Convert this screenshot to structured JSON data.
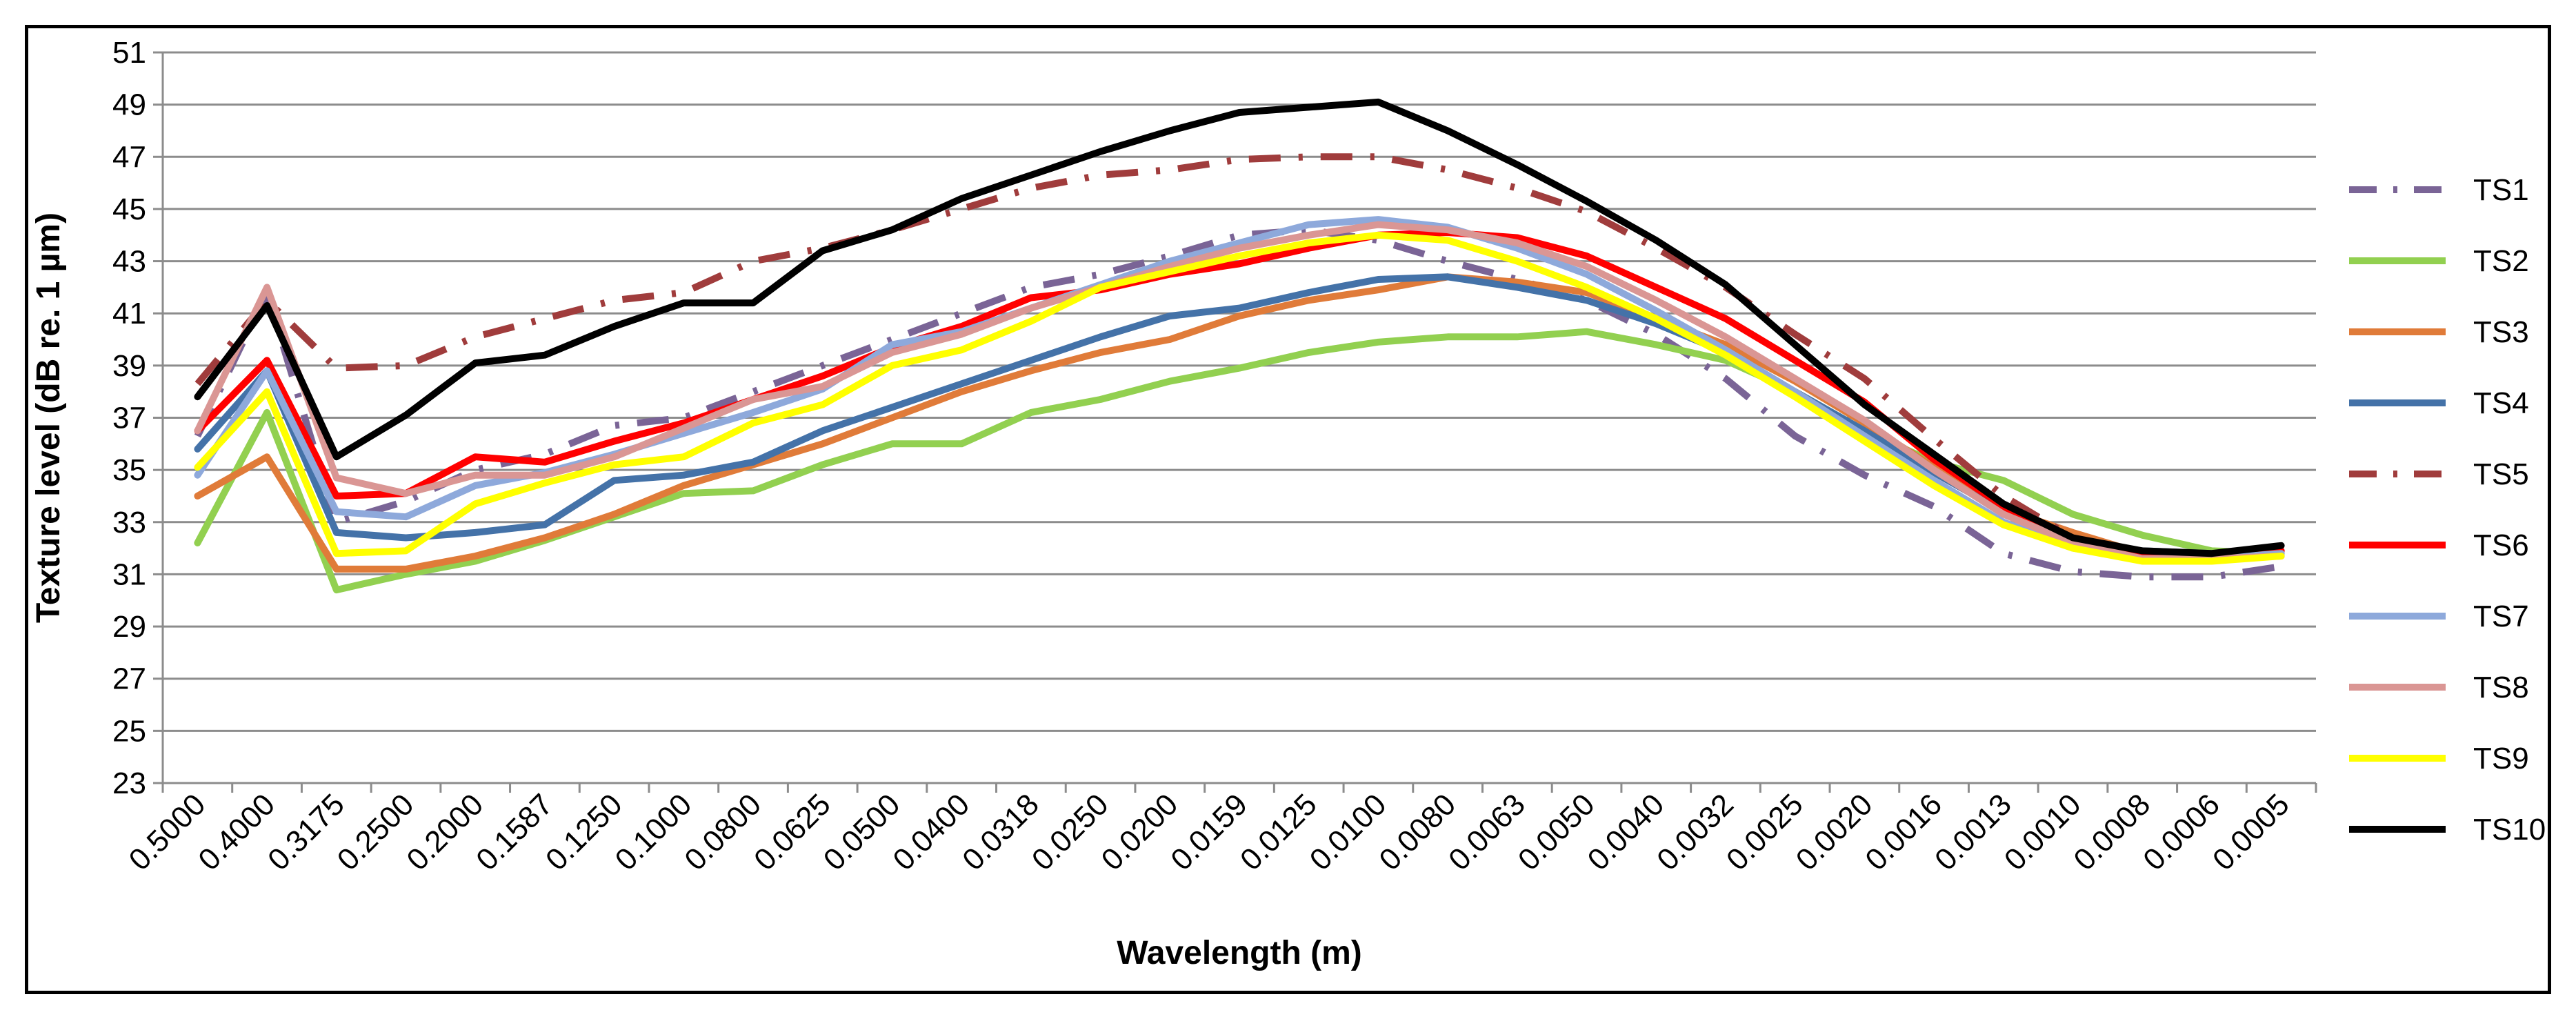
{
  "chart_data": {
    "type": "line",
    "title": "",
    "xlabel": "Wavelength (m)",
    "ylabel": "Texture level (dB re. 1 µm)",
    "ylim": [
      23,
      51
    ],
    "yticks": [
      23,
      25,
      27,
      29,
      31,
      33,
      35,
      37,
      39,
      41,
      43,
      45,
      47,
      49,
      51
    ],
    "grid": true,
    "legend_position": "right",
    "categories": [
      "0.5000",
      "0.4000",
      "0.3175",
      "0.2500",
      "0.2000",
      "0.1587",
      "0.1250",
      "0.1000",
      "0.0800",
      "0.0625",
      "0.0500",
      "0.0400",
      "0.0318",
      "0.0250",
      "0.0200",
      "0.0159",
      "0.0125",
      "0.0100",
      "0.0080",
      "0.0063",
      "0.0050",
      "0.0040",
      "0.0032",
      "0.0025",
      "0.0020",
      "0.0016",
      "0.0013",
      "0.0010",
      "0.0008",
      "0.0006",
      "0.0005"
    ],
    "series": [
      {
        "name": "TS1",
        "color": "#7a6496",
        "style": "dashdot",
        "values": [
          36.3,
          41.8,
          33.0,
          33.8,
          35.0,
          35.6,
          36.7,
          37.0,
          38.0,
          39.0,
          40.0,
          41.0,
          42.0,
          42.5,
          43.2,
          44.0,
          44.2,
          43.8,
          43.0,
          42.3,
          41.5,
          40.2,
          38.5,
          36.3,
          34.8,
          33.6,
          31.8,
          31.1,
          30.9,
          30.9,
          31.3
        ]
      },
      {
        "name": "TS2",
        "color": "#92d050",
        "style": "solid",
        "values": [
          32.2,
          37.2,
          30.4,
          31.0,
          31.5,
          32.3,
          33.2,
          34.1,
          34.2,
          35.2,
          36.0,
          36.0,
          37.2,
          37.7,
          38.4,
          38.9,
          39.5,
          39.9,
          40.1,
          40.1,
          40.3,
          39.8,
          39.2,
          38.0,
          36.5,
          35.3,
          34.6,
          33.3,
          32.5,
          31.9,
          31.8
        ]
      },
      {
        "name": "TS3",
        "color": "#e07b39",
        "style": "solid",
        "values": [
          34.0,
          35.5,
          31.2,
          31.2,
          31.7,
          32.4,
          33.3,
          34.4,
          35.2,
          36.0,
          37.0,
          38.0,
          38.8,
          39.5,
          40.0,
          40.9,
          41.5,
          41.9,
          42.4,
          42.2,
          41.8,
          40.8,
          39.8,
          38.4,
          36.8,
          35.1,
          33.5,
          32.6,
          31.8,
          31.6,
          31.7
        ]
      },
      {
        "name": "TS4",
        "color": "#4472a8",
        "style": "solid",
        "values": [
          35.8,
          38.8,
          32.6,
          32.4,
          32.6,
          32.9,
          34.6,
          34.8,
          35.3,
          36.5,
          37.4,
          38.3,
          39.2,
          40.1,
          40.9,
          41.2,
          41.8,
          42.3,
          42.4,
          42.0,
          41.5,
          40.6,
          39.5,
          38.0,
          36.5,
          34.9,
          33.4,
          32.3,
          31.9,
          31.8,
          31.9
        ]
      },
      {
        "name": "TS5",
        "color": "#a03c3c",
        "style": "dashdot",
        "values": [
          38.3,
          41.5,
          38.9,
          39.0,
          40.1,
          40.8,
          41.5,
          41.8,
          43.0,
          43.5,
          44.2,
          45.0,
          45.8,
          46.3,
          46.5,
          46.9,
          47.0,
          47.0,
          46.5,
          45.8,
          44.9,
          43.5,
          42.0,
          40.2,
          38.5,
          36.2,
          34.0,
          32.4,
          31.8,
          31.8,
          31.9
        ]
      },
      {
        "name": "TS6",
        "color": "#ff0000",
        "style": "solid",
        "values": [
          36.5,
          39.2,
          34.0,
          34.1,
          35.5,
          35.3,
          36.1,
          36.8,
          37.7,
          38.6,
          39.7,
          40.5,
          41.6,
          41.9,
          42.5,
          42.9,
          43.5,
          44.0,
          44.1,
          43.9,
          43.2,
          42.0,
          40.8,
          39.2,
          37.6,
          35.4,
          33.6,
          32.3,
          31.7,
          31.7,
          31.9
        ]
      },
      {
        "name": "TS7",
        "color": "#8ea9db",
        "style": "solid",
        "values": [
          34.8,
          38.8,
          33.4,
          33.2,
          34.4,
          34.9,
          35.6,
          36.4,
          37.2,
          38.1,
          39.8,
          40.3,
          41.2,
          42.1,
          43.0,
          43.7,
          44.4,
          44.6,
          44.3,
          43.5,
          42.5,
          41.1,
          39.6,
          38.0,
          36.3,
          34.6,
          33.0,
          32.0,
          31.6,
          31.6,
          31.8
        ]
      },
      {
        "name": "TS8",
        "color": "#da9694",
        "style": "solid",
        "values": [
          36.5,
          42.0,
          34.7,
          34.1,
          34.8,
          34.8,
          35.5,
          36.6,
          37.7,
          38.2,
          39.5,
          40.2,
          41.2,
          42.0,
          42.8,
          43.5,
          44.0,
          44.4,
          44.2,
          43.7,
          42.8,
          41.5,
          40.1,
          38.5,
          36.9,
          35.0,
          33.3,
          32.2,
          31.6,
          31.6,
          31.7
        ]
      },
      {
        "name": "TS9",
        "color": "#ffff00",
        "style": "solid",
        "values": [
          35.1,
          38.0,
          31.8,
          31.9,
          33.7,
          34.5,
          35.2,
          35.5,
          36.8,
          37.5,
          39.0,
          39.6,
          40.7,
          42.0,
          42.6,
          43.2,
          43.7,
          44.0,
          43.8,
          43.0,
          42.0,
          40.8,
          39.4,
          37.8,
          36.1,
          34.4,
          32.9,
          32.0,
          31.5,
          31.5,
          31.7
        ]
      },
      {
        "name": "TS10",
        "color": "#000000",
        "style": "solid",
        "values": [
          37.8,
          41.3,
          35.5,
          37.1,
          39.1,
          39.4,
          40.5,
          41.4,
          41.4,
          43.4,
          44.2,
          45.4,
          46.3,
          47.2,
          48.0,
          48.7,
          48.9,
          49.1,
          48.0,
          46.7,
          45.3,
          43.8,
          42.1,
          39.8,
          37.5,
          35.6,
          33.7,
          32.4,
          31.9,
          31.8,
          32.1
        ]
      }
    ]
  }
}
